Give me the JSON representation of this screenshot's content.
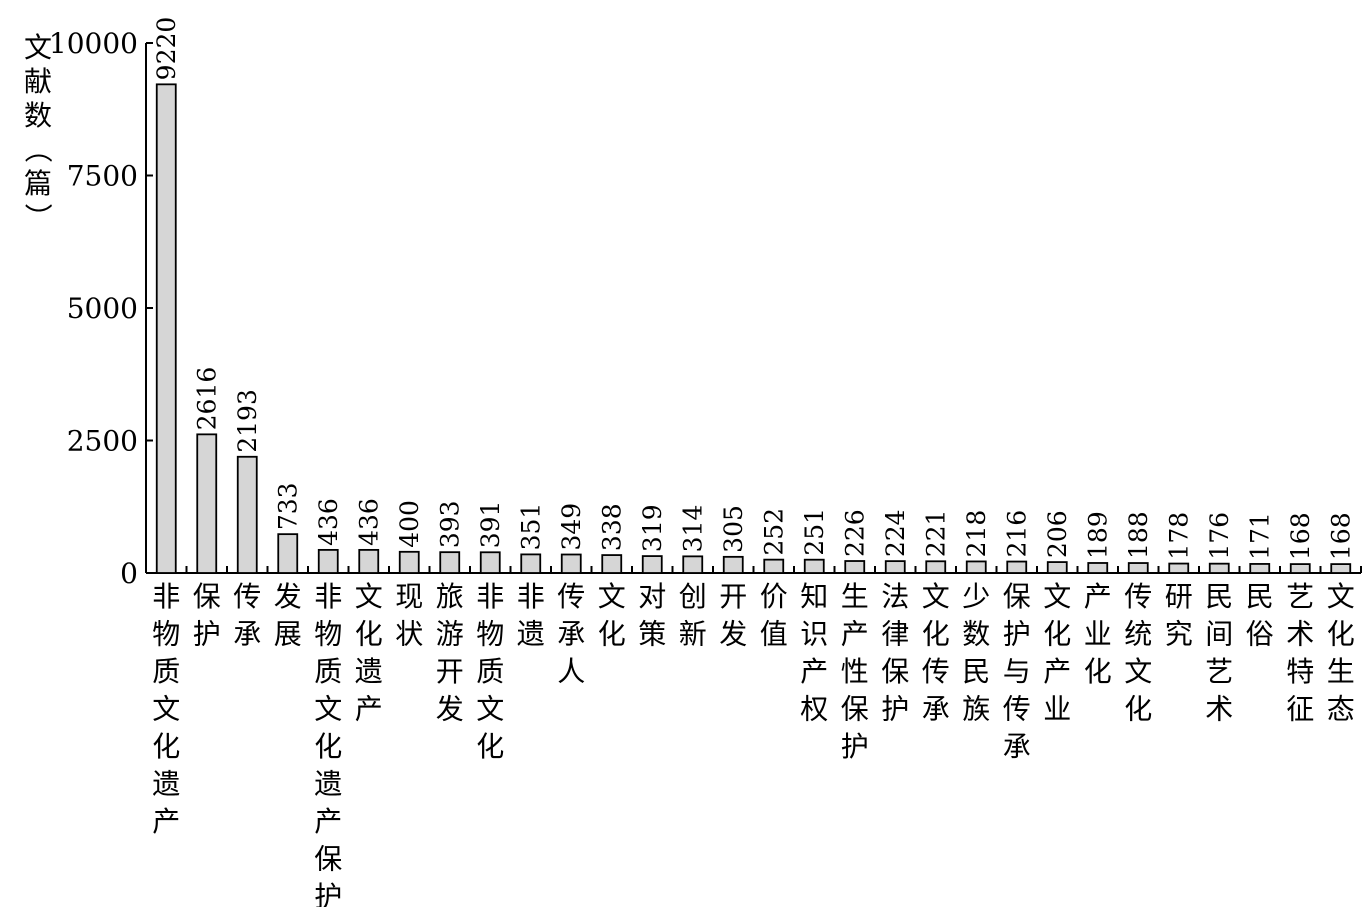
{
  "chart_data": {
    "type": "bar",
    "title": "",
    "xlabel": "",
    "ylabel": "文献数（篇）",
    "ylim": [
      0,
      10000
    ],
    "yticks": [
      0,
      2500,
      5000,
      7500,
      10000
    ],
    "grid": false,
    "categories": [
      "非物质文化遗产",
      "保护",
      "传承",
      "发展",
      "非物质文化遗产保护",
      "文化遗产",
      "现状",
      "旅游开发",
      "非物质文化",
      "非遗",
      "传承人",
      "文化",
      "对策",
      "创新",
      "开发",
      "价值",
      "知识产权",
      "生产性保护",
      "法律保护",
      "文化传承",
      "少数民族",
      "保护与传承",
      "文化产业",
      "产业化",
      "传统文化",
      "研究",
      "民间艺术",
      "民俗",
      "艺术特征",
      "文化生态"
    ],
    "values": [
      9220,
      2616,
      2193,
      733,
      436,
      436,
      400,
      393,
      391,
      351,
      349,
      338,
      319,
      314,
      305,
      252,
      251,
      226,
      224,
      221,
      218,
      216,
      206,
      189,
      188,
      178,
      176,
      171,
      168,
      168
    ],
    "colors": {
      "bar_fill": "#d6d6d6",
      "bar_stroke": "#000000"
    }
  }
}
